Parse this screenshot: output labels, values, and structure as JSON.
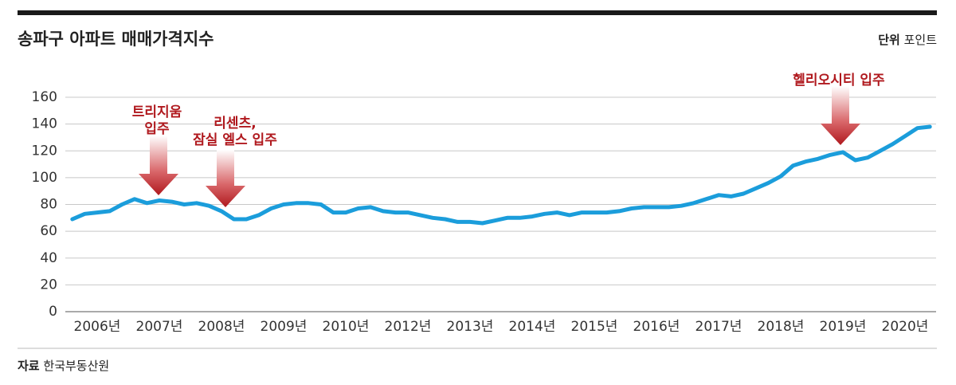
{
  "chart_data": {
    "type": "line",
    "title": "송파구 아파트 매매가격지수",
    "unit_label": "단위",
    "unit": "포인트",
    "source_label": "자료",
    "source": "한국부동산원",
    "categories": [
      null,
      null,
      "2006년",
      null,
      null,
      null,
      null,
      "2007년",
      null,
      null,
      null,
      null,
      "2008년",
      null,
      null,
      null,
      null,
      "2009년",
      null,
      null,
      null,
      null,
      "2010년",
      null,
      null,
      null,
      null,
      "2012년",
      null,
      null,
      null,
      null,
      "2013년",
      null,
      null,
      null,
      null,
      "2014년",
      null,
      null,
      null,
      null,
      "2015년",
      null,
      null,
      null,
      null,
      "2016년",
      null,
      null,
      null,
      null,
      "2017년",
      null,
      null,
      null,
      null,
      "2018년",
      null,
      null,
      null,
      null,
      "2019년",
      null,
      null,
      null,
      null,
      "2020년",
      null,
      null
    ],
    "values": [
      69,
      73,
      74,
      75,
      80,
      84,
      81,
      83,
      82,
      80,
      81,
      79,
      75,
      69,
      69,
      72,
      77,
      80,
      81,
      81,
      80,
      74,
      74,
      77,
      78,
      75,
      74,
      74,
      72,
      70,
      69,
      67,
      67,
      66,
      68,
      70,
      70,
      71,
      73,
      74,
      72,
      74,
      74,
      74,
      75,
      77,
      78,
      78,
      78,
      79,
      81,
      84,
      87,
      86,
      88,
      92,
      96,
      101,
      109,
      112,
      114,
      117,
      119,
      113,
      115,
      120,
      125,
      131,
      137,
      138
    ],
    "color": "#1b9ddb",
    "ylim": [
      0,
      160
    ],
    "yticks": [
      0,
      20,
      40,
      60,
      80,
      100,
      120,
      140,
      160
    ],
    "grid": true,
    "annotations": [
      {
        "lines": [
          "트리지움",
          "입주"
        ]
      },
      {
        "lines": [
          "리센츠,",
          "잠실 엘스 입주"
        ]
      },
      {
        "lines": [
          "헬리오시티 입주"
        ]
      }
    ]
  }
}
